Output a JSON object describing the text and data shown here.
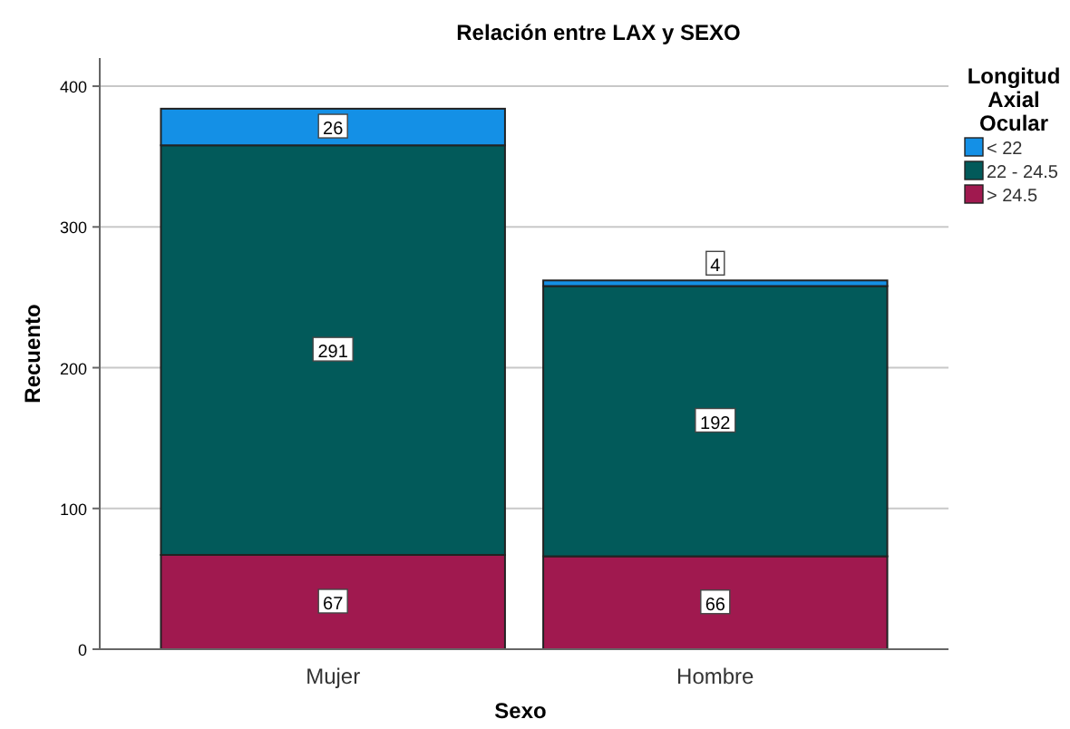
{
  "chart_data": {
    "type": "bar",
    "title": "Relación entre LAX y SEXO",
    "xlabel": "Sexo",
    "ylabel": "Recuento",
    "legend_title": "Longitud Axial Ocular",
    "categories": [
      "Mujer",
      "Hombre"
    ],
    "stacked": true,
    "series": [
      {
        "name": "> 24.5",
        "color": "#a0194f",
        "values": [
          67,
          66
        ]
      },
      {
        "name": "22 - 24.5",
        "color": "#025a5a",
        "values": [
          291,
          192
        ]
      },
      {
        "name": "< 22",
        "color": "#1490e6",
        "values": [
          26,
          4
        ]
      }
    ],
    "ylim": [
      0,
      420
    ],
    "yticks": [
      0,
      100,
      200,
      300,
      400
    ],
    "grid": "y",
    "legend": "right",
    "data_labels": true
  }
}
